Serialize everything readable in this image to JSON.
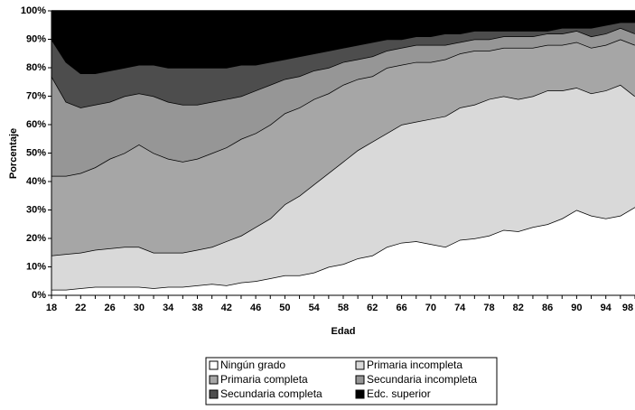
{
  "chart_data": {
    "type": "stacked_area",
    "x_label": "Edad",
    "y_label": "Porcentaje",
    "x": [
      18,
      20,
      22,
      24,
      26,
      28,
      30,
      32,
      34,
      36,
      38,
      40,
      42,
      44,
      46,
      48,
      50,
      52,
      54,
      56,
      58,
      60,
      62,
      64,
      66,
      68,
      70,
      72,
      74,
      76,
      78,
      80,
      82,
      84,
      86,
      88,
      90,
      92,
      94,
      96,
      98
    ],
    "xlim": [
      18,
      98
    ],
    "xticks": [
      18,
      20,
      22,
      24,
      26,
      28,
      30,
      32,
      34,
      36,
      38,
      40,
      42,
      44,
      46,
      48,
      50,
      52,
      54,
      56,
      58,
      60,
      62,
      64,
      66,
      68,
      70,
      72,
      74,
      76,
      78,
      80,
      82,
      84,
      86,
      88,
      90,
      92,
      94,
      96,
      98
    ],
    "ylim": [
      0,
      100
    ],
    "yticks": [
      {
        "value": 0,
        "label": "0%"
      },
      {
        "value": 10,
        "label": "10%"
      },
      {
        "value": 20,
        "label": "20%"
      },
      {
        "value": 30,
        "label": "30%"
      },
      {
        "value": 40,
        "label": "40%"
      },
      {
        "value": 50,
        "label": "50%"
      },
      {
        "value": 60,
        "label": "60%"
      },
      {
        "value": 70,
        "label": "70%"
      },
      {
        "value": 80,
        "label": "80%"
      },
      {
        "value": 90,
        "label": "90%"
      },
      {
        "value": 100,
        "label": "100%"
      }
    ],
    "series": [
      {
        "name": "Ningún grado",
        "color": "#ffffff",
        "values": [
          2,
          2,
          2.5,
          3,
          3,
          3,
          3,
          2.5,
          3,
          3,
          3.5,
          4,
          3.5,
          4.5,
          5,
          6,
          7,
          7,
          8,
          10,
          11,
          13,
          14,
          17,
          18.5,
          19,
          18,
          17,
          19.5,
          20,
          21,
          23,
          22.5,
          24,
          25,
          27,
          30,
          28,
          27,
          28,
          31
        ]
      },
      {
        "name": "Primaria incompleta",
        "color": "#d9d9d9",
        "values": [
          12,
          12.5,
          12.5,
          13,
          13.5,
          14,
          14,
          12.5,
          12,
          12,
          12.5,
          13,
          15.5,
          16.5,
          19,
          21,
          25,
          28,
          31,
          33,
          36,
          38,
          40,
          40,
          41.5,
          42,
          44,
          46,
          46.5,
          47,
          48,
          47,
          46.5,
          46,
          47,
          45,
          43,
          43,
          45,
          46,
          39
        ]
      },
      {
        "name": "Primaria completa",
        "color": "#a6a6a6",
        "values": [
          28,
          27.5,
          28,
          29,
          31.5,
          33,
          36,
          35,
          33,
          32,
          32,
          33,
          33,
          34,
          33,
          33,
          32,
          31,
          30,
          28,
          27,
          25,
          23,
          23,
          21,
          21,
          20,
          20,
          19,
          19,
          17,
          17,
          18,
          17,
          16,
          16,
          16,
          16,
          16,
          16,
          18
        ]
      },
      {
        "name": "Secundaria incompleta",
        "color": "#969696",
        "values": [
          35,
          26,
          23,
          22,
          20,
          20,
          18,
          20,
          20,
          20,
          19,
          18,
          17,
          15,
          15,
          14,
          12,
          11,
          10,
          9,
          8,
          7,
          7,
          6,
          6,
          6,
          6,
          5,
          4,
          4,
          4,
          4,
          4,
          4,
          4,
          4,
          4,
          4,
          4,
          4,
          4
        ]
      },
      {
        "name": "Secundaria completa",
        "color": "#4d4d4d",
        "values": [
          13,
          14,
          12,
          11,
          11,
          10,
          10,
          11,
          12,
          13,
          13,
          12,
          11,
          11,
          9,
          8,
          7,
          7,
          6,
          6,
          5,
          5,
          5,
          4,
          3,
          3,
          3,
          4,
          3,
          3,
          3,
          2,
          2,
          2,
          1,
          2,
          1,
          3,
          3,
          2,
          4
        ]
      },
      {
        "name": "Edc. superior",
        "color": "#000000",
        "values": [
          10,
          18,
          22,
          22,
          21,
          20,
          19,
          19,
          20,
          20,
          20,
          20,
          20,
          19,
          19,
          18,
          17,
          16,
          15,
          14,
          13,
          12,
          11,
          10,
          10,
          9,
          9,
          8,
          8,
          7,
          7,
          7,
          7,
          7,
          7,
          6,
          6,
          6,
          5,
          4,
          4
        ]
      }
    ]
  }
}
